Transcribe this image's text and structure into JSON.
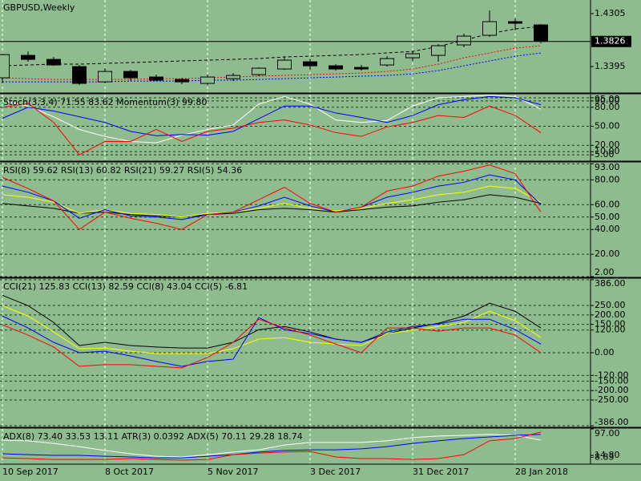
{
  "chart_data": [
    {
      "type": "candlestick",
      "title": "GBPUSD,Weekly",
      "categories": [
        "10 Sep 2017",
        null,
        null,
        null,
        "8 Oct 2017",
        null,
        null,
        null,
        "5 Nov 2017",
        null,
        null,
        null,
        "3 Dec 2017",
        null,
        null,
        null,
        "31 Dec 2017",
        null,
        null,
        null,
        "28 Jan 2018",
        null
      ],
      "open": [
        1.3201,
        1.3587,
        1.3518,
        1.3394,
        1.3132,
        1.3311,
        1.3215,
        1.3173,
        1.3105,
        1.3187,
        1.3256,
        1.3353,
        1.3477,
        1.3408,
        1.338,
        1.3422,
        1.3546,
        1.3587,
        1.3767,
        1.3932,
        1.4167,
        1.4111
      ],
      "high": [
        1.3615,
        1.3656,
        1.356,
        1.3422,
        1.3367,
        1.3339,
        1.3256,
        1.3201,
        1.3256,
        1.3284,
        1.338,
        1.356,
        1.3532,
        1.3436,
        1.3422,
        1.3573,
        1.3656,
        1.378,
        1.396,
        1.436,
        1.4222,
        1.4125
      ],
      "low": [
        1.3105,
        1.3477,
        1.3408,
        1.3077,
        1.3105,
        1.3146,
        1.3146,
        1.3091,
        1.3077,
        1.3146,
        1.3229,
        1.3339,
        1.3339,
        1.3325,
        1.3325,
        1.3394,
        1.3491,
        1.3477,
        1.3725,
        1.3905,
        1.4015,
        1.3794
      ],
      "close": [
        1.3601,
        1.3518,
        1.3422,
        1.3105,
        1.3311,
        1.3201,
        1.316,
        1.3132,
        1.3215,
        1.3242,
        1.3367,
        1.3505,
        1.3408,
        1.3353,
        1.3353,
        1.3532,
        1.3615,
        1.3753,
        1.3918,
        1.4167,
        1.4139,
        1.3836
      ],
      "up_color": "#8fbc8f",
      "down_color": "#000000",
      "series": [
        {
          "color": "#000000",
          "style": "dashed",
          "values": [
            1.3408,
            1.3422,
            1.3436,
            1.3436,
            1.3449,
            1.3463,
            1.3477,
            1.3491,
            1.3505,
            1.3518,
            1.3532,
            1.356,
            1.3573,
            1.3587,
            1.3601,
            1.3629,
            1.3656,
            1.3739,
            1.3849,
            1.396,
            1.4042,
            1.4084
          ]
        },
        {
          "color": "#ff0000",
          "style": "dotted",
          "values": [
            1.3201,
            1.3187,
            1.3173,
            1.3173,
            1.3173,
            1.3173,
            1.3187,
            1.3187,
            1.3201,
            1.3215,
            1.3229,
            1.3242,
            1.3256,
            1.327,
            1.3284,
            1.3311,
            1.3353,
            1.3436,
            1.3546,
            1.3629,
            1.3711,
            1.3753
          ]
        },
        {
          "color": "#0000ff",
          "style": "dotted",
          "values": [
            1.3132,
            1.3132,
            1.3132,
            1.3132,
            1.3132,
            1.3146,
            1.3146,
            1.3146,
            1.316,
            1.316,
            1.3173,
            1.3187,
            1.3201,
            1.3215,
            1.3229,
            1.3242,
            1.327,
            1.3325,
            1.3408,
            1.3491,
            1.3573,
            1.3629
          ]
        }
      ],
      "last_price": 1.3826,
      "ylim": [
        1.2954,
        1.4539
      ],
      "yticks": [
        1.4305,
        1.3395
      ],
      "grid": false
    },
    {
      "type": "line",
      "title": "Stoch(3,3,4) 71.55 83.62 Momentum(3) 99.80",
      "series": [
        {
          "color": "#ffffff",
          "values": [
            90,
            82,
            65,
            45,
            34,
            26,
            24,
            36,
            45,
            52,
            85,
            97,
            85,
            60,
            56,
            59,
            82,
            95,
            97,
            99,
            97,
            77
          ]
        },
        {
          "color": "#0000ff",
          "values": [
            62.5,
            80,
            74,
            65,
            56,
            42,
            35,
            37,
            36,
            42,
            62,
            82,
            82,
            71,
            64,
            56,
            67,
            84,
            92,
            97,
            95,
            84
          ]
        },
        {
          "color": "#ff0000",
          "values": [
            80,
            86,
            56,
            5,
            26,
            26,
            45,
            26,
            42,
            47,
            56,
            60,
            52,
            40,
            34,
            49,
            56,
            67,
            64,
            82,
            67,
            40
          ]
        }
      ],
      "ylim": [
        -3.75,
        100
      ],
      "yticks": [
        {
          "value": 95,
          "label": "95.00"
        },
        {
          "value": 90,
          "label": "90.00"
        },
        {
          "value": 80,
          "label": "80.00"
        },
        {
          "value": 50,
          "label": "50.00"
        },
        {
          "value": 20,
          "label": "20.00"
        },
        {
          "value": 10,
          "label": "10.00"
        },
        {
          "value": 5,
          "label": "5.00"
        }
      ],
      "grid": true
    },
    {
      "type": "line",
      "title": "RSI(8) 59.62 RSI(13) 60.82 RSI(21) 59.27 RSI(5) 54.36",
      "series": [
        {
          "color": "#000000",
          "values": [
            61,
            59,
            57,
            53,
            54,
            52,
            51,
            50,
            52,
            53,
            56,
            57,
            56,
            54,
            56,
            58,
            59,
            62,
            64,
            68,
            66,
            61
          ]
        },
        {
          "color": "#ffff00",
          "values": [
            68,
            66,
            62,
            53,
            56,
            53,
            52,
            50,
            53,
            54,
            57,
            61,
            57,
            55,
            57,
            61,
            64,
            68,
            70,
            75,
            73,
            62
          ]
        },
        {
          "color": "#0000ff",
          "values": [
            75,
            70,
            63,
            49,
            56,
            51,
            50,
            48,
            52,
            54,
            59,
            66,
            59,
            54,
            58,
            66,
            70,
            75,
            78,
            84,
            80,
            60
          ]
        },
        {
          "color": "#ff0000",
          "values": [
            82,
            73,
            63,
            40,
            54,
            49,
            45,
            40,
            52,
            54,
            64,
            74,
            61,
            54,
            58,
            71,
            75,
            83,
            87,
            92,
            85,
            54
          ]
        }
      ],
      "ylim": [
        2,
        93.8
      ],
      "yticks": [
        {
          "value": 93,
          "label": "93.00"
        },
        {
          "value": 80,
          "label": "80.00"
        },
        {
          "value": 60,
          "label": "60.00"
        },
        {
          "value": 50,
          "label": "50.00"
        },
        {
          "value": 40,
          "label": "40.00"
        },
        {
          "value": 20,
          "label": "20.00"
        },
        {
          "value": 2,
          "label": "2.00"
        }
      ],
      "grid": true
    },
    {
      "type": "line",
      "title": "CCI(21) 125.83 CCI(13) 82.59 CCI(8) 43.04 CCI(5) -6.81",
      "series": [
        {
          "color": "#000000",
          "values": [
            304,
            249,
            160,
            38,
            55,
            38,
            30,
            25,
            25,
            55,
            122,
            139,
            110,
            72,
            55,
            101,
            131,
            156,
            194,
            262,
            219,
            131
          ]
        },
        {
          "color": "#ffff00",
          "values": [
            249,
            194,
            110,
            21,
            25,
            8,
            -4,
            -4,
            -4,
            21,
            72,
            80,
            55,
            46,
            38,
            101,
            118,
            139,
            160,
            219,
            169,
            80
          ]
        },
        {
          "color": "#0000ff",
          "values": [
            194,
            131,
            55,
            0,
            8,
            -17,
            -46,
            -72,
            -46,
            -34,
            186,
            122,
            101,
            72,
            55,
            110,
            139,
            152,
            177,
            177,
            122,
            46
          ]
        },
        {
          "color": "#ff0000",
          "values": [
            148,
            93,
            30,
            -72,
            -63,
            -63,
            -72,
            -80,
            -25,
            55,
            177,
            131,
            93,
            46,
            0,
            131,
            131,
            114,
            131,
            131,
            93,
            0
          ]
        }
      ],
      "ylim": [
        -390,
        390
      ],
      "yticks": [
        {
          "value": 386,
          "label": "386.00"
        },
        {
          "value": 250,
          "label": "250.00"
        },
        {
          "value": 200,
          "label": "200.00"
        },
        {
          "value": 150,
          "label": "150.00"
        },
        {
          "value": 120,
          "label": "120.00"
        },
        {
          "value": 0,
          "label": "0.00"
        },
        {
          "value": -120,
          "label": "-120.00"
        },
        {
          "value": -150,
          "label": "-150.00"
        },
        {
          "value": -200,
          "label": "-200.00"
        },
        {
          "value": -250,
          "label": "-250.00"
        },
        {
          "value": -386,
          "label": "-386.00"
        }
      ],
      "grid": true
    },
    {
      "type": "line",
      "title": "ADX(8) 73.40 33.53 13.11 ATR(3) 0.0392 ADX(5) 70.11 29.28 18.74",
      "series": [
        {
          "color": "#ffffff",
          "values": [
            62,
            60,
            52,
            42,
            30,
            20,
            12,
            10,
            17,
            25,
            32,
            47,
            55,
            55,
            55,
            60,
            70,
            75,
            77,
            80,
            77,
            62
          ]
        },
        {
          "color": "#0000ff",
          "values": [
            20,
            17,
            15,
            15,
            12,
            10,
            7,
            7,
            12,
            17,
            25,
            30,
            32,
            32,
            35,
            42,
            52,
            60,
            67,
            72,
            77,
            80
          ]
        },
        {
          "color": "#ff0000",
          "values": [
            7,
            5,
            2,
            2,
            2,
            5,
            2,
            0,
            2,
            17,
            22,
            25,
            27,
            10,
            5,
            5,
            2,
            5,
            17,
            60,
            67,
            87
          ]
        }
      ],
      "ylim": [
        -10,
        97
      ],
      "yticks": [
        {
          "value": 97,
          "label": "97.00"
        },
        {
          "value": 14.8,
          "label": "14.80"
        },
        {
          "value": 8.83,
          "label": "8.83"
        }
      ],
      "grid": false
    }
  ]
}
